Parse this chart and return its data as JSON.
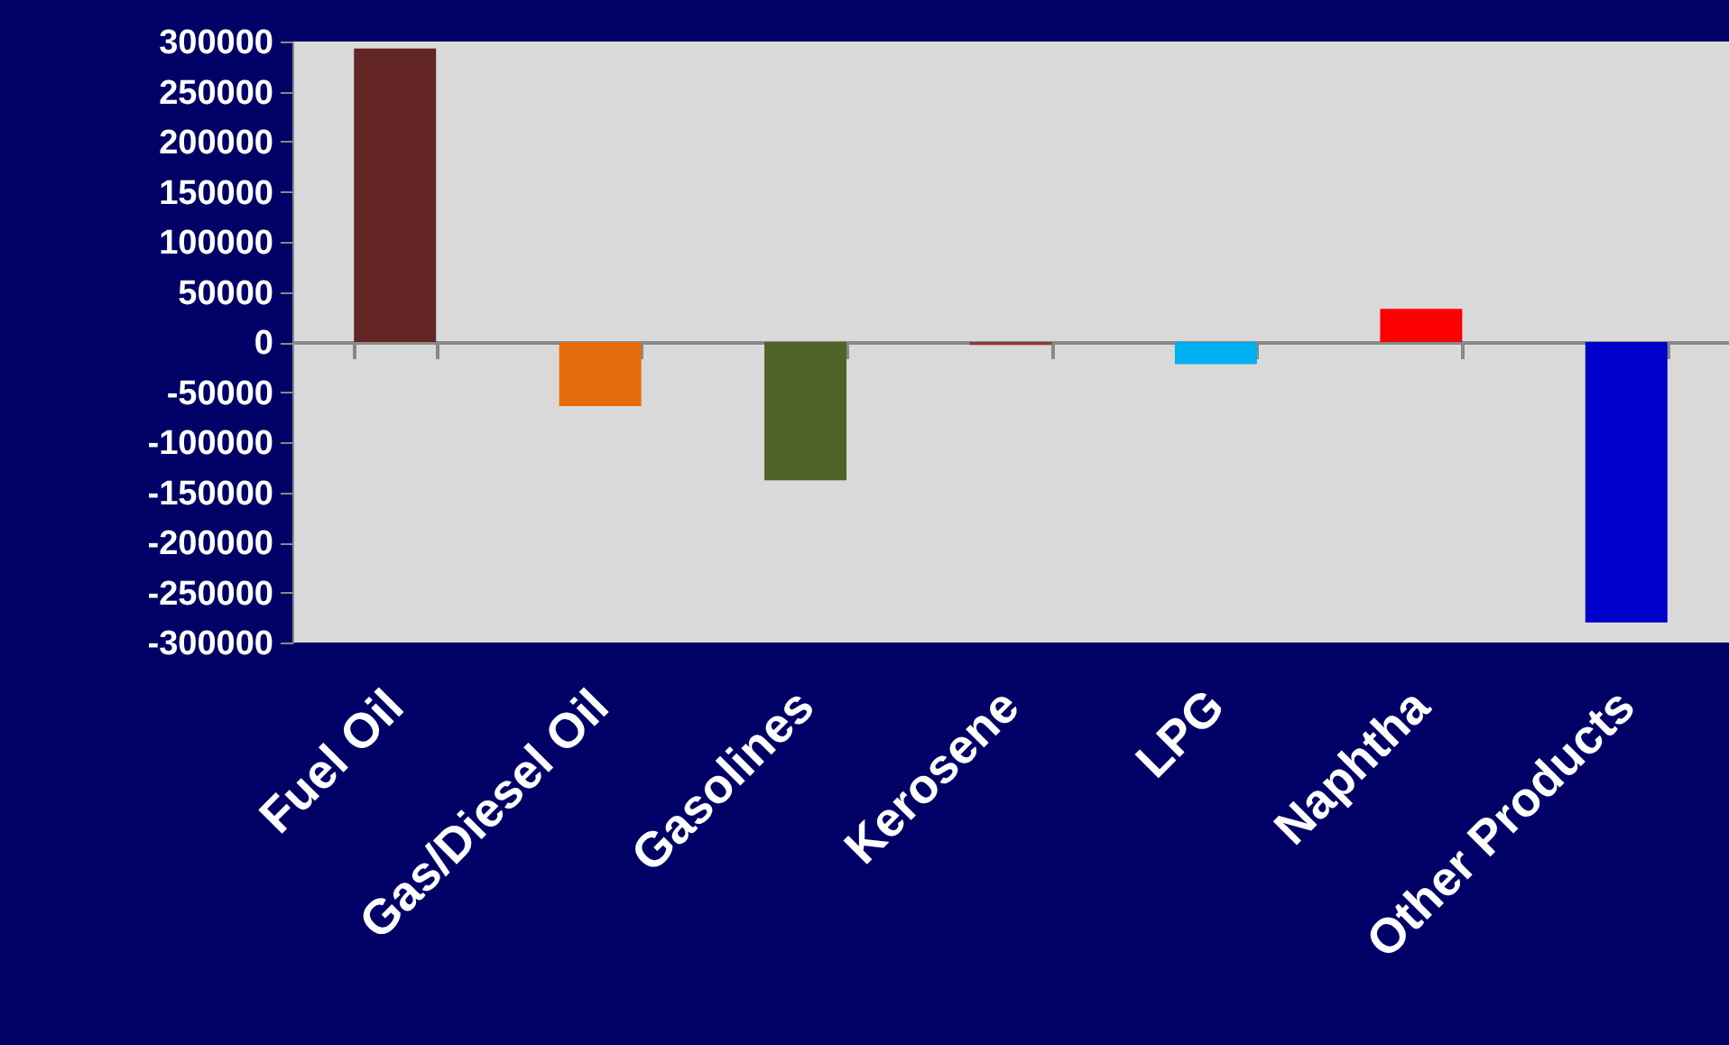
{
  "chart_data": {
    "type": "bar",
    "categories": [
      "Fuel Oil",
      "Gas/Diesel Oil",
      "Gasolines",
      "Kerosene",
      "LPG",
      "Naphtha",
      "Other Products"
    ],
    "values": [
      293000,
      -64000,
      -138000,
      -3000,
      -22000,
      33000,
      -280000
    ],
    "colors": [
      "#632523",
      "#e46c0a",
      "#4f6228",
      "#953735",
      "#00b0f0",
      "#ff0000",
      "#0000cc"
    ],
    "ylim": [
      -300000,
      300000
    ],
    "yticks": [
      -300000,
      -250000,
      -200000,
      -150000,
      -100000,
      -50000,
      0,
      50000,
      100000,
      150000,
      200000,
      250000,
      300000
    ]
  }
}
